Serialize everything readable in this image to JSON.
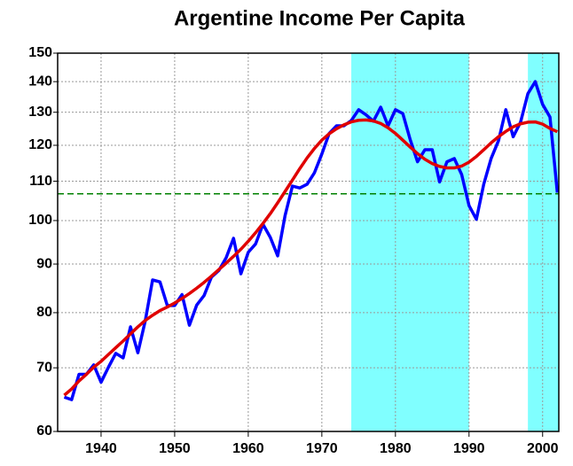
{
  "chart_data": {
    "type": "line",
    "title": "Argentine Income Per Capita",
    "x": [
      1935,
      1936,
      1937,
      1938,
      1939,
      1940,
      1941,
      1942,
      1943,
      1944,
      1945,
      1946,
      1947,
      1948,
      1949,
      1950,
      1951,
      1952,
      1953,
      1954,
      1955,
      1956,
      1957,
      1958,
      1959,
      1960,
      1961,
      1962,
      1963,
      1964,
      1965,
      1966,
      1967,
      1968,
      1969,
      1970,
      1971,
      1972,
      1973,
      1974,
      1975,
      1976,
      1977,
      1978,
      1979,
      1980,
      1981,
      1982,
      1983,
      1984,
      1985,
      1986,
      1987,
      1988,
      1989,
      1990,
      1991,
      1992,
      1993,
      1994,
      1995,
      1996,
      1997,
      1998,
      1999,
      2000,
      2001,
      2002
    ],
    "series": [
      {
        "color": "#0000ff",
        "values": [
          65.2,
          64.8,
          68.9,
          68.9,
          70.5,
          67.6,
          70.1,
          72.5,
          71.7,
          77.3,
          72.6,
          78.4,
          86.6,
          86.2,
          81.4,
          81.4,
          83.6,
          77.6,
          81.5,
          83.4,
          87.2,
          88.6,
          91.4,
          95.8,
          87.9,
          92.6,
          94.5,
          99.1,
          96.0,
          91.8,
          101.2,
          108.7,
          108.2,
          109.2,
          112.3,
          117.5,
          123.5,
          125.8,
          125.8,
          127.4,
          130.8,
          129.2,
          127.2,
          131.6,
          125.8,
          130.8,
          129.6,
          121.7,
          115.3,
          118.7,
          118.7,
          109.8,
          115.3,
          116.2,
          111.8,
          103.7,
          100.3,
          109.2,
          116.2,
          121.3,
          130.8,
          122.5,
          126.9,
          136.0,
          140.0,
          132.5,
          128.5,
          107.0
        ]
      },
      {
        "color": "#e00000",
        "values": [
          65.5,
          66.5,
          67.8,
          68.9,
          70.1,
          71.1,
          72.3,
          73.5,
          74.7,
          76.0,
          77.3,
          78.5,
          79.5,
          80.4,
          81.1,
          81.9,
          82.8,
          83.8,
          84.9,
          86.1,
          87.4,
          88.8,
          90.2,
          91.7,
          93.3,
          95.1,
          97.1,
          99.3,
          101.7,
          104.4,
          107.3,
          110.3,
          113.4,
          116.4,
          119.1,
          121.5,
          123.4,
          124.9,
          126.1,
          127.0,
          127.5,
          127.6,
          127.3,
          126.5,
          125.2,
          123.5,
          121.5,
          119.5,
          117.6,
          116.0,
          114.8,
          114.0,
          113.6,
          113.6,
          114.1,
          115.2,
          116.8,
          118.7,
          120.7,
          122.5,
          124.1,
          125.5,
          126.4,
          126.9,
          127.0,
          126.3,
          125.0,
          124.0
        ]
      }
    ],
    "xlim": [
      1934.1,
      2002.2
    ],
    "xticks": [
      1940,
      1950,
      1960,
      1970,
      1980,
      1990,
      2000
    ],
    "ylim": [
      60,
      150
    ],
    "yticks": [
      60,
      70,
      80,
      90,
      100,
      110,
      120,
      130,
      140,
      150
    ],
    "log_scale": true,
    "grid": true,
    "shaded_ranges": [
      [
        1974,
        1990
      ],
      [
        1998,
        2002.2
      ]
    ],
    "shade_color": "#80ffff",
    "hline": 106.7,
    "hline_color": "#008000"
  }
}
